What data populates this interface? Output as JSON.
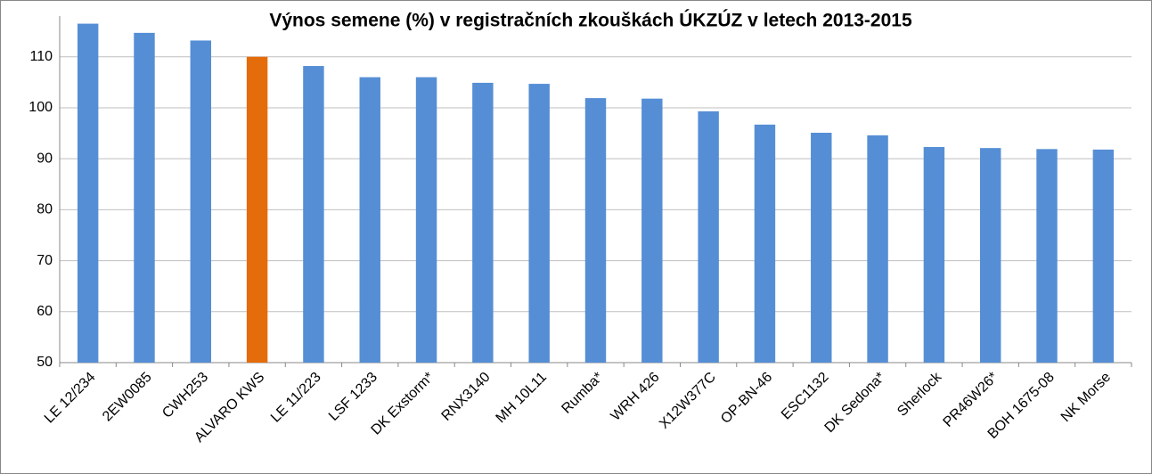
{
  "chart_data": {
    "type": "bar",
    "title": "Výnos semene (%) v registračních zkouškách ÚKZÚZ v letech 2013-2015",
    "categories": [
      "LE 12/234",
      "2EW0085",
      "CWH253",
      "ALVARO KWS",
      "LE 11/223",
      "LSF 1233",
      "DK Exstorm*",
      "RNX3140",
      "MH 10L11",
      "Rumba*",
      "WRH 426",
      "X12W377C",
      "OP-BN-46",
      "ESC1132",
      "DK Sedona*",
      "Sherlock",
      "PR46W26*",
      "BOH 1675-08",
      "NK Morse"
    ],
    "values": [
      116.5,
      114.7,
      113.2,
      110,
      108.2,
      106.0,
      106.0,
      104.9,
      104.7,
      101.9,
      101.8,
      99.3,
      96.7,
      95.1,
      94.6,
      92.3,
      92.1,
      91.9,
      91.8
    ],
    "colors": [
      "#558ed5",
      "#558ed5",
      "#558ed5",
      "#e46c0a",
      "#558ed5",
      "#558ed5",
      "#558ed5",
      "#558ed5",
      "#558ed5",
      "#558ed5",
      "#558ed5",
      "#558ed5",
      "#558ed5",
      "#558ed5",
      "#558ed5",
      "#558ed5",
      "#558ed5",
      "#558ed5",
      "#558ed5"
    ],
    "ylim": [
      50,
      118
    ],
    "yticks": [
      50,
      60,
      70,
      80,
      90,
      100,
      110
    ],
    "grid": true
  }
}
